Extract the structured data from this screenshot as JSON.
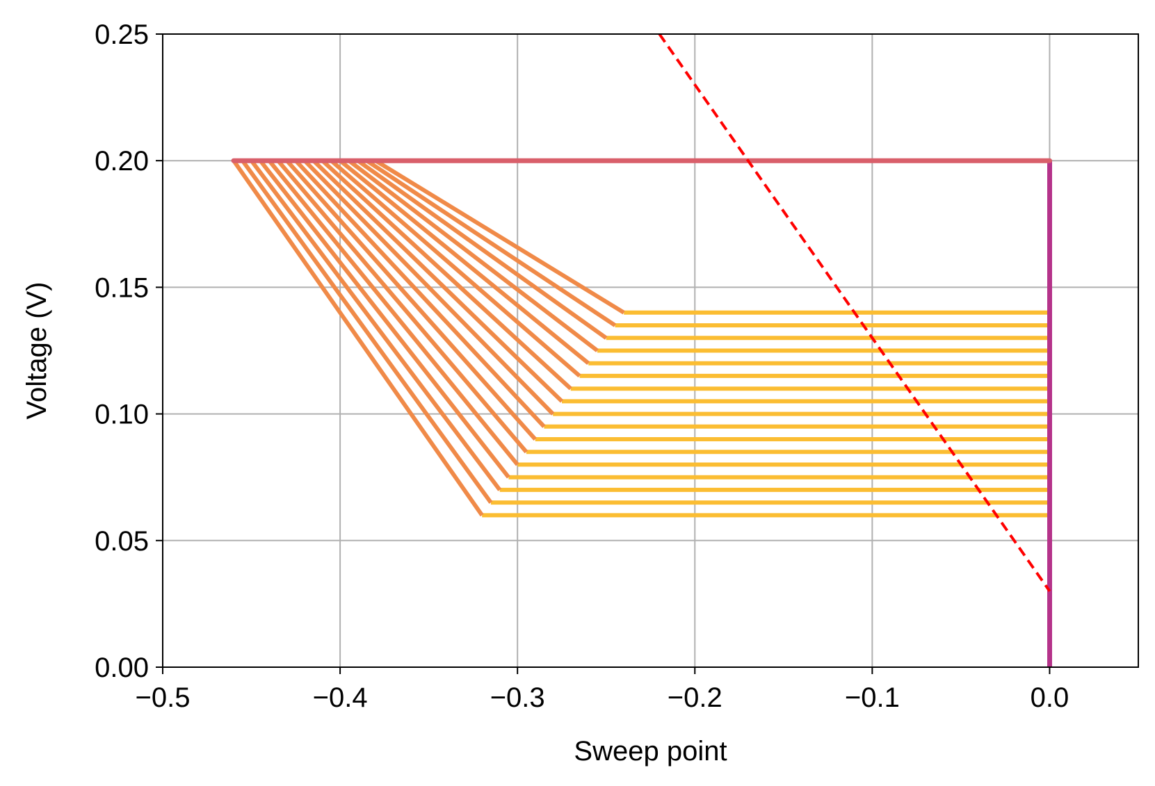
{
  "chart_data": {
    "type": "line",
    "title": "",
    "xlabel": "Sweep point",
    "ylabel": "Voltage (V)",
    "xlim": [
      -0.5,
      0.05
    ],
    "ylim": [
      0.0,
      0.25
    ],
    "grid": true,
    "x_ticks": [
      -0.5,
      -0.4,
      -0.3,
      -0.2,
      -0.1,
      0.0
    ],
    "x_tick_labels": [
      "−0.5",
      "−0.4",
      "−0.3",
      "−0.2",
      "−0.1",
      "0.0"
    ],
    "y_ticks": [
      0.0,
      0.05,
      0.1,
      0.15,
      0.2,
      0.25
    ],
    "y_tick_labels": [
      "0.00",
      "0.05",
      "0.10",
      "0.15",
      "0.20",
      "0.25"
    ],
    "colors": {
      "top_line": "#d95f6a",
      "vertical_line": "#b5338a",
      "sweep_diagonal": "#f08a48",
      "sweep_horizontal": "#fbbd32",
      "dashed_line": "#ff0000",
      "grid": "#b0b0b0",
      "axis": "#000000"
    },
    "series": [
      {
        "style": "solid",
        "points": [
          [
            -0.46,
            0.2
          ],
          [
            0.0,
            0.2
          ]
        ]
      },
      {
        "style": "solid",
        "points": [
          [
            0.0,
            0.2
          ],
          [
            0.0,
            0.0
          ]
        ]
      },
      {
        "style": "dashed",
        "points": [
          [
            -0.22,
            0.25
          ],
          [
            0.0,
            0.03
          ]
        ]
      }
    ],
    "sweeps": [
      {
        "start_x": -0.46,
        "bend": [
          -0.32,
          0.06
        ],
        "end_x": 0.0
      },
      {
        "start_x": -0.455,
        "bend": [
          -0.315,
          0.065
        ],
        "end_x": 0.0
      },
      {
        "start_x": -0.45,
        "bend": [
          -0.31,
          0.07
        ],
        "end_x": 0.0
      },
      {
        "start_x": -0.445,
        "bend": [
          -0.305,
          0.075
        ],
        "end_x": 0.0
      },
      {
        "start_x": -0.44,
        "bend": [
          -0.3,
          0.08
        ],
        "end_x": 0.0
      },
      {
        "start_x": -0.435,
        "bend": [
          -0.295,
          0.085
        ],
        "end_x": 0.0
      },
      {
        "start_x": -0.43,
        "bend": [
          -0.29,
          0.09
        ],
        "end_x": 0.0
      },
      {
        "start_x": -0.425,
        "bend": [
          -0.285,
          0.095
        ],
        "end_x": 0.0
      },
      {
        "start_x": -0.42,
        "bend": [
          -0.28,
          0.1
        ],
        "end_x": 0.0
      },
      {
        "start_x": -0.415,
        "bend": [
          -0.275,
          0.105
        ],
        "end_x": 0.0
      },
      {
        "start_x": -0.41,
        "bend": [
          -0.27,
          0.11
        ],
        "end_x": 0.0
      },
      {
        "start_x": -0.405,
        "bend": [
          -0.265,
          0.115
        ],
        "end_x": 0.0
      },
      {
        "start_x": -0.4,
        "bend": [
          -0.26,
          0.12
        ],
        "end_x": 0.0
      },
      {
        "start_x": -0.395,
        "bend": [
          -0.255,
          0.125
        ],
        "end_x": 0.0
      },
      {
        "start_x": -0.39,
        "bend": [
          -0.25,
          0.13
        ],
        "end_x": 0.0
      },
      {
        "start_x": -0.385,
        "bend": [
          -0.245,
          0.135
        ],
        "end_x": 0.0
      },
      {
        "start_x": -0.38,
        "bend": [
          -0.24,
          0.14
        ],
        "end_x": 0.0
      }
    ]
  }
}
